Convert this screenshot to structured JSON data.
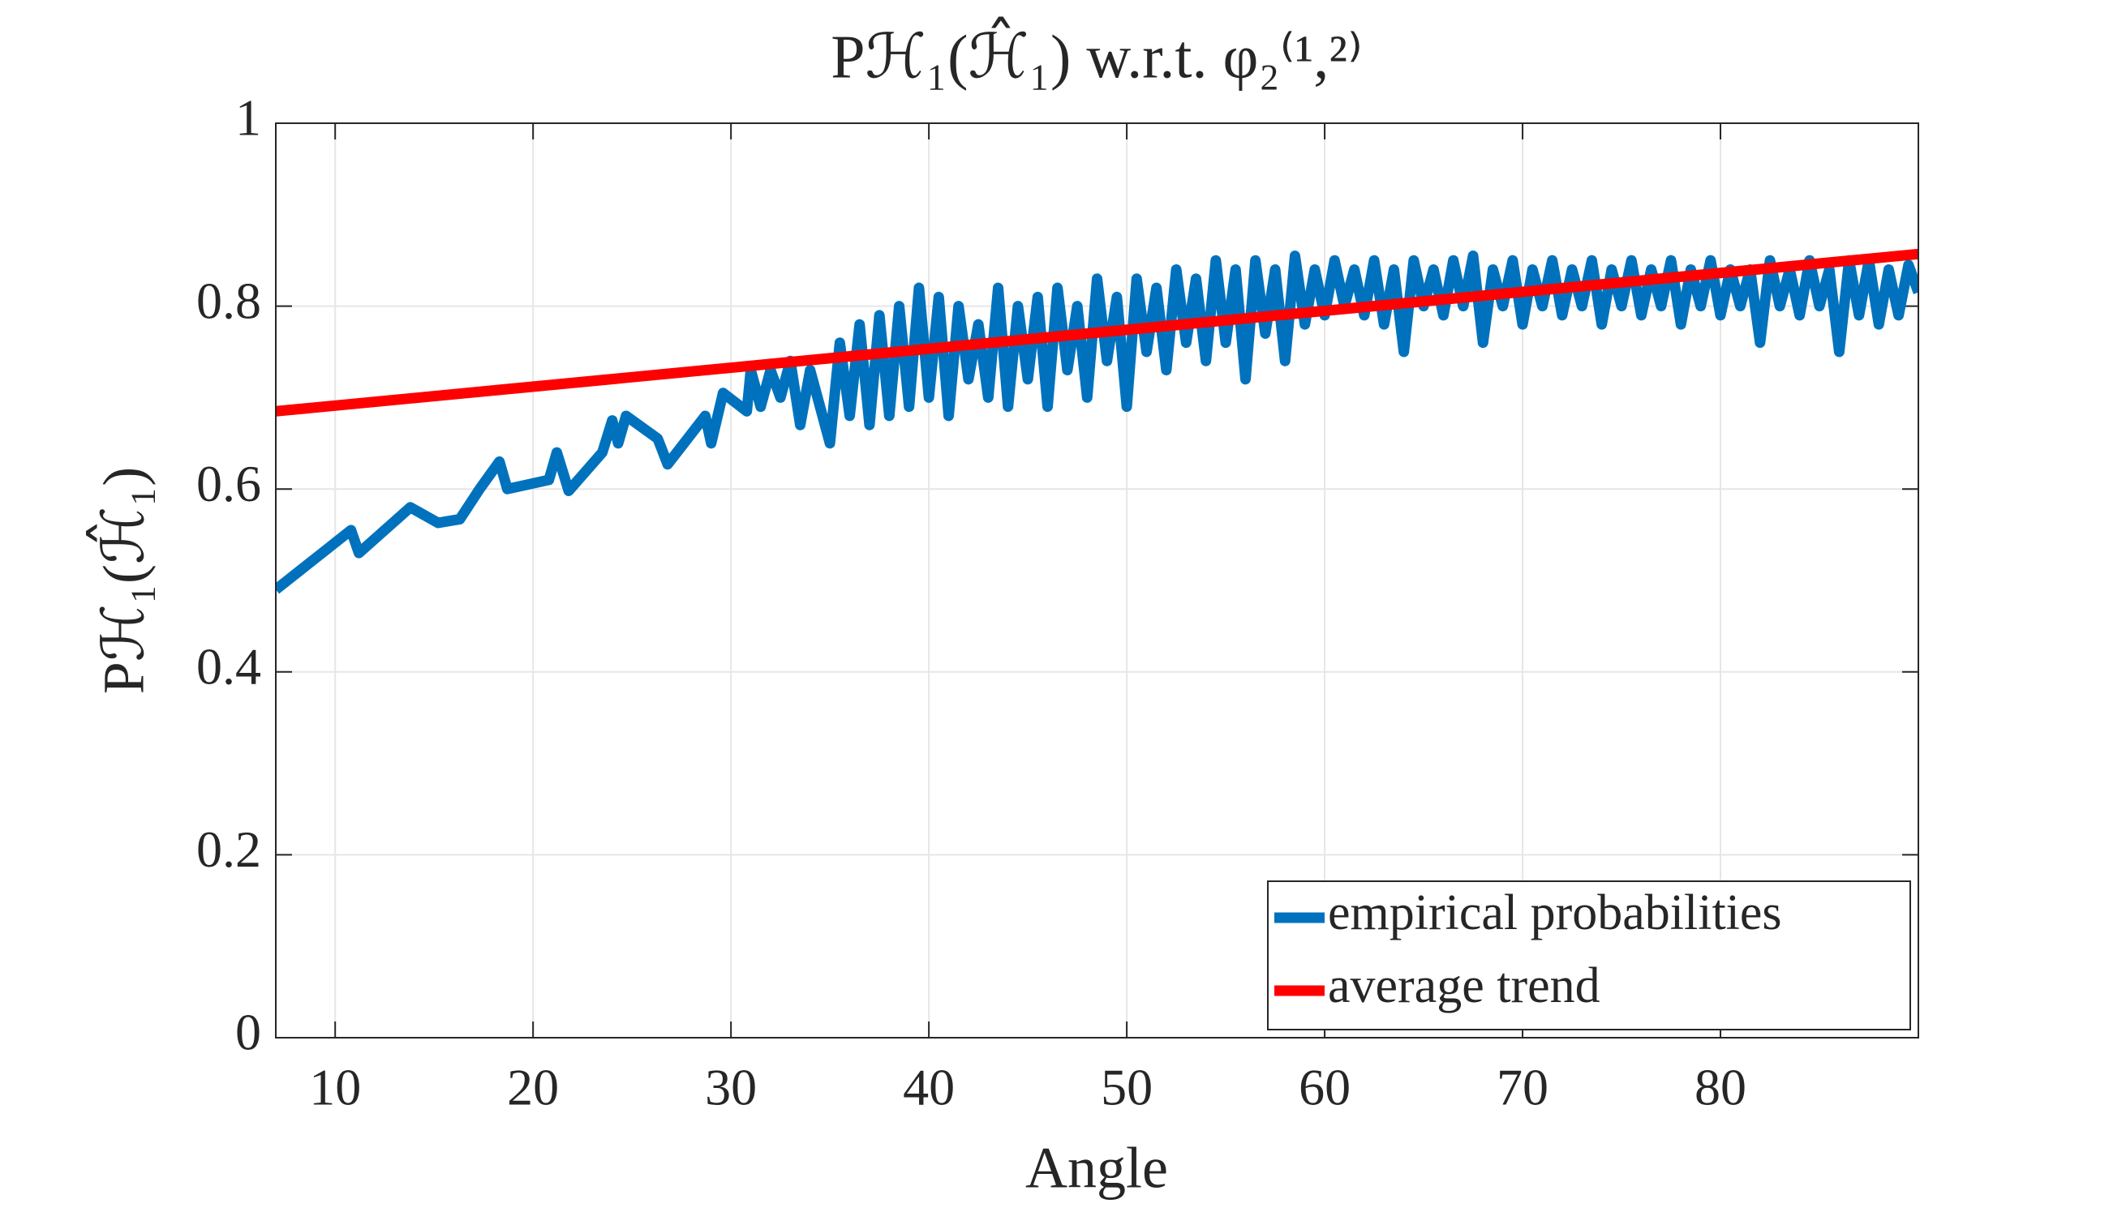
{
  "chart_data": {
    "type": "line",
    "title": "Pℋ₁(ℋ̂₁) w.r.t. φ₂⁽¹,²⁾",
    "xlabel": "Angle",
    "ylabel": "Pℋ₁(ℋ̂₁)",
    "xlim": [
      7,
      90
    ],
    "ylim": [
      0,
      1
    ],
    "xticks": [
      10,
      20,
      30,
      40,
      50,
      60,
      70,
      80
    ],
    "yticks": [
      0,
      0.2,
      0.4,
      0.6,
      0.8,
      1
    ],
    "grid": true,
    "legend": "southeast",
    "series": [
      {
        "name": "empirical probabilities",
        "color": "#0072bd",
        "x": [
          7,
          10.8,
          11.2,
          13.8,
          15.2,
          16.3,
          17.3,
          18.3,
          18.7,
          20.8,
          21.2,
          21.8,
          23.5,
          24,
          24.3,
          24.7,
          26.3,
          26.8,
          28.7,
          29,
          29.6,
          30.8,
          31,
          31.5,
          32,
          32.5,
          33,
          33.5,
          34,
          34.5,
          35,
          35.5,
          36,
          36.5,
          37,
          37.5,
          38,
          38.5,
          39,
          39.5,
          40,
          40.5,
          41,
          41.5,
          42,
          42.5,
          43,
          43.5,
          44,
          44.5,
          45,
          45.5,
          46,
          46.5,
          47,
          47.5,
          48,
          48.5,
          49,
          49.5,
          50,
          50.5,
          51,
          51.5,
          52,
          52.5,
          53,
          53.5,
          54,
          54.5,
          55,
          55.5,
          56,
          56.5,
          57,
          57.5,
          58,
          58.5,
          59,
          59.5,
          60,
          60.5,
          61,
          61.5,
          62,
          62.5,
          63,
          63.5,
          64,
          64.5,
          65,
          65.5,
          66,
          66.5,
          67,
          67.5,
          68,
          68.5,
          69,
          69.5,
          70,
          70.5,
          71,
          71.5,
          72,
          72.5,
          73,
          73.5,
          74,
          74.5,
          75,
          75.5,
          76,
          76.5,
          77,
          77.5,
          78,
          78.5,
          79,
          79.5,
          80,
          80.5,
          81,
          81.5,
          82,
          82.5,
          83,
          83.5,
          84,
          84.5,
          85,
          85.5,
          86,
          86.5,
          87,
          87.5,
          88,
          88.5,
          89,
          89.5,
          90
        ],
        "values": [
          0.49,
          0.555,
          0.53,
          0.58,
          0.563,
          0.567,
          0.6,
          0.63,
          0.6,
          0.61,
          0.64,
          0.598,
          0.64,
          0.675,
          0.65,
          0.68,
          0.655,
          0.627,
          0.68,
          0.65,
          0.705,
          0.685,
          0.73,
          0.69,
          0.73,
          0.7,
          0.74,
          0.67,
          0.73,
          0.69,
          0.65,
          0.76,
          0.68,
          0.78,
          0.67,
          0.79,
          0.68,
          0.8,
          0.69,
          0.82,
          0.7,
          0.81,
          0.68,
          0.8,
          0.72,
          0.78,
          0.7,
          0.82,
          0.69,
          0.8,
          0.72,
          0.81,
          0.69,
          0.82,
          0.73,
          0.8,
          0.7,
          0.83,
          0.74,
          0.81,
          0.69,
          0.83,
          0.75,
          0.82,
          0.73,
          0.84,
          0.76,
          0.83,
          0.74,
          0.85,
          0.76,
          0.84,
          0.72,
          0.85,
          0.77,
          0.84,
          0.74,
          0.855,
          0.78,
          0.84,
          0.79,
          0.85,
          0.8,
          0.84,
          0.79,
          0.85,
          0.78,
          0.84,
          0.75,
          0.85,
          0.8,
          0.84,
          0.79,
          0.85,
          0.8,
          0.855,
          0.76,
          0.84,
          0.8,
          0.85,
          0.78,
          0.84,
          0.8,
          0.85,
          0.79,
          0.84,
          0.8,
          0.85,
          0.78,
          0.84,
          0.8,
          0.85,
          0.79,
          0.84,
          0.8,
          0.85,
          0.78,
          0.84,
          0.8,
          0.85,
          0.79,
          0.84,
          0.8,
          0.84,
          0.76,
          0.85,
          0.8,
          0.84,
          0.79,
          0.85,
          0.8,
          0.84,
          0.75,
          0.85,
          0.79,
          0.85,
          0.78,
          0.84,
          0.79,
          0.845,
          0.815
        ]
      },
      {
        "name": "average trend",
        "color": "#ff0000",
        "x": [
          7,
          90
        ],
        "values": [
          0.685,
          0.857
        ]
      }
    ]
  }
}
